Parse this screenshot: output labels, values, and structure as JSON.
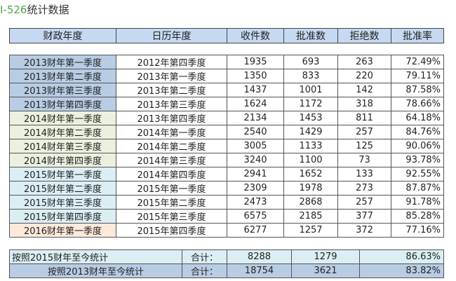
{
  "title": {
    "code": "I-526",
    "text": "统计数据"
  },
  "headers": [
    "财政年度",
    "日历年度",
    "收件数",
    "批准数",
    "拒绝数",
    "批准率"
  ],
  "rows": [
    [
      "2013财年第一季度",
      "2012年第四季度",
      "1935",
      "693",
      "263",
      "72.49%",
      "2013"
    ],
    [
      "2013财年第二季度",
      "2013年第一季度",
      "1350",
      "833",
      "220",
      "79.11%",
      "2013"
    ],
    [
      "2013财年第三季度",
      "2013年第二季度",
      "1437",
      "1001",
      "142",
      "87.58%",
      "2013"
    ],
    [
      "2013财年第四季度",
      "2013年第三季度",
      "1624",
      "1172",
      "318",
      "78.66%",
      "2013"
    ],
    [
      "2014财年第一季度",
      "2013年第四季度",
      "2134",
      "1453",
      "811",
      "64.18%",
      "2014"
    ],
    [
      "2014财年第二季度",
      "2014年第一季度",
      "2540",
      "1429",
      "257",
      "84.76%",
      "2014"
    ],
    [
      "2014财年第三季度",
      "2014年第二季度",
      "3005",
      "1133",
      "125",
      "90.06%",
      "2014"
    ],
    [
      "2014财年第四季度",
      "2014年第三季度",
      "3240",
      "1100",
      "73",
      "93.78%",
      "2014"
    ],
    [
      "2015财年第一季度",
      "2014年第四季度",
      "2941",
      "1652",
      "133",
      "92.55%",
      "2015"
    ],
    [
      "2015财年第二季度",
      "2015年第一季度",
      "2309",
      "1978",
      "273",
      "87.87%",
      "2015"
    ],
    [
      "2015财年第三季度",
      "2015年第二季度",
      "2473",
      "2868",
      "257",
      "91.78%",
      "2015"
    ],
    [
      "2015财年第四季度",
      "2015年第三季度",
      "6575",
      "2185",
      "377",
      "85.28%",
      "2015"
    ],
    [
      "2016财年第一季度",
      "2015年第四季度",
      "6277",
      "1257",
      "372",
      "77.16%",
      "2016"
    ]
  ],
  "summary": [
    {
      "label": "按照2015财年至今统计",
      "total_label": "合计：",
      "approved": "8288",
      "denied": "1279",
      "rate": "86.63%"
    },
    {
      "label": "按照2013财年至今统计",
      "total_label": "合计：",
      "approved": "18754",
      "denied": "3621",
      "rate": "83.82%"
    }
  ],
  "colors": {
    "2013": "#b8cce4",
    "2014": "#ebf1de",
    "2015": "#dbeef4",
    "2016": "#fde9d9",
    "header": "#c5d9f1"
  }
}
